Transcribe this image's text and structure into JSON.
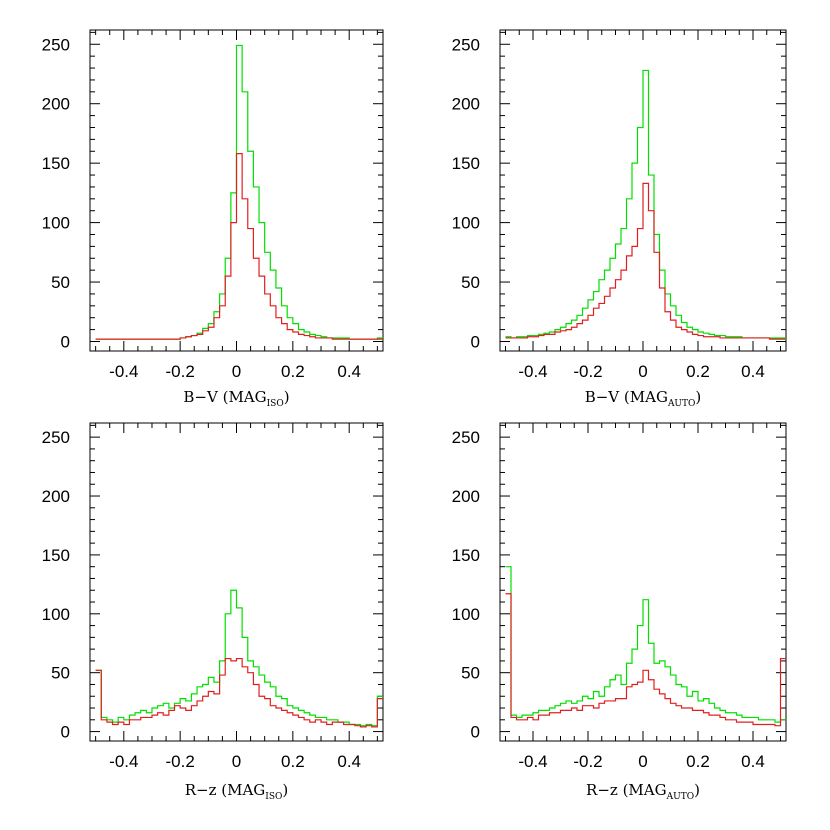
{
  "figure": {
    "colors": {
      "green": "#00e000",
      "red": "#e02020",
      "axes": "#000000"
    }
  },
  "chart_data": [
    {
      "type": "histogram",
      "xlabel": {
        "main": "B−V (MAG",
        "sub": "ISO",
        "close": ")"
      },
      "xlim": [
        -0.52,
        0.52
      ],
      "ylim": [
        -8,
        262
      ],
      "xticks": [
        "-0.4",
        "-0.2",
        "0",
        "0.2",
        "0.4"
      ],
      "yticks": [
        "0",
        "50",
        "100",
        "150",
        "200",
        "250"
      ],
      "bin_edges": [
        -0.5,
        -0.48,
        -0.46,
        -0.44,
        -0.42,
        -0.4,
        -0.38,
        -0.36,
        -0.34,
        -0.32,
        -0.3,
        -0.28,
        -0.26,
        -0.24,
        -0.22,
        -0.2,
        -0.18,
        -0.16,
        -0.14,
        -0.12,
        -0.1,
        -0.08,
        -0.06,
        -0.04,
        -0.02,
        0,
        0.02,
        0.04,
        0.06,
        0.08,
        0.1,
        0.12,
        0.14,
        0.16,
        0.18,
        0.2,
        0.22,
        0.24,
        0.26,
        0.28,
        0.3,
        0.32,
        0.34,
        0.36,
        0.38,
        0.4,
        0.42,
        0.44,
        0.46,
        0.48,
        0.5,
        0.52
      ],
      "series": [
        {
          "color": "green",
          "counts": [
            2,
            2,
            2,
            2,
            2,
            2,
            2,
            2,
            2,
            2,
            2,
            2,
            2,
            2,
            2,
            3,
            4,
            5,
            7,
            11,
            15,
            25,
            40,
            70,
            125,
            249,
            210,
            160,
            130,
            100,
            75,
            60,
            45,
            30,
            20,
            15,
            10,
            8,
            6,
            5,
            4,
            3,
            3,
            3,
            3,
            2,
            2,
            2,
            2,
            2,
            3
          ]
        },
        {
          "color": "red",
          "counts": [
            2,
            2,
            2,
            2,
            2,
            2,
            2,
            2,
            2,
            2,
            2,
            2,
            2,
            2,
            2,
            3,
            4,
            5,
            6,
            9,
            12,
            20,
            30,
            55,
            100,
            158,
            120,
            95,
            70,
            55,
            40,
            30,
            20,
            15,
            10,
            8,
            6,
            5,
            4,
            3,
            3,
            3,
            2,
            2,
            2,
            2,
            2,
            2,
            2,
            2,
            2
          ]
        }
      ]
    },
    {
      "type": "histogram",
      "xlabel": {
        "main": "B−V (MAG",
        "sub": "AUTO",
        "close": ")"
      },
      "xlim": [
        -0.52,
        0.52
      ],
      "ylim": [
        -8,
        262
      ],
      "xticks": [
        "-0.4",
        "-0.2",
        "0",
        "0.2",
        "0.4"
      ],
      "yticks": [
        "0",
        "50",
        "100",
        "150",
        "200",
        "250"
      ],
      "bin_edges": [
        -0.5,
        -0.48,
        -0.46,
        -0.44,
        -0.42,
        -0.4,
        -0.38,
        -0.36,
        -0.34,
        -0.32,
        -0.3,
        -0.28,
        -0.26,
        -0.24,
        -0.22,
        -0.2,
        -0.18,
        -0.16,
        -0.14,
        -0.12,
        -0.1,
        -0.08,
        -0.06,
        -0.04,
        -0.02,
        0,
        0.02,
        0.04,
        0.06,
        0.08,
        0.1,
        0.12,
        0.14,
        0.16,
        0.18,
        0.2,
        0.22,
        0.24,
        0.26,
        0.28,
        0.3,
        0.32,
        0.34,
        0.36,
        0.38,
        0.4,
        0.42,
        0.44,
        0.46,
        0.48,
        0.5,
        0.52
      ],
      "series": [
        {
          "color": "green",
          "counts": [
            4,
            3,
            4,
            4,
            5,
            5,
            6,
            7,
            8,
            10,
            12,
            15,
            18,
            22,
            28,
            35,
            42,
            52,
            60,
            70,
            82,
            95,
            120,
            150,
            180,
            228,
            140,
            90,
            60,
            40,
            30,
            22,
            16,
            12,
            10,
            8,
            7,
            6,
            5,
            5,
            4,
            4,
            4,
            3,
            3,
            3,
            3,
            3,
            3,
            3,
            3
          ]
        },
        {
          "color": "red",
          "counts": [
            3,
            3,
            3,
            3,
            4,
            4,
            5,
            6,
            6,
            8,
            9,
            10,
            12,
            15,
            18,
            22,
            28,
            32,
            38,
            45,
            52,
            60,
            72,
            80,
            95,
            133,
            110,
            75,
            45,
            25,
            18,
            12,
            10,
            8,
            6,
            5,
            4,
            4,
            4,
            3,
            3,
            3,
            3,
            3,
            3,
            3,
            3,
            3,
            2,
            2,
            2
          ]
        }
      ]
    },
    {
      "type": "histogram",
      "xlabel": {
        "main": "R−z (MAG",
        "sub": "ISO",
        "close": ")"
      },
      "xlim": [
        -0.52,
        0.52
      ],
      "ylim": [
        -8,
        262
      ],
      "xticks": [
        "-0.4",
        "-0.2",
        "0",
        "0.2",
        "0.4"
      ],
      "yticks": [
        "0",
        "50",
        "100",
        "150",
        "200",
        "250"
      ],
      "bin_edges": [
        -0.5,
        -0.48,
        -0.46,
        -0.44,
        -0.42,
        -0.4,
        -0.38,
        -0.36,
        -0.34,
        -0.32,
        -0.3,
        -0.28,
        -0.26,
        -0.24,
        -0.22,
        -0.2,
        -0.18,
        -0.16,
        -0.14,
        -0.12,
        -0.1,
        -0.08,
        -0.06,
        -0.04,
        -0.02,
        0,
        0.02,
        0.04,
        0.06,
        0.08,
        0.1,
        0.12,
        0.14,
        0.16,
        0.18,
        0.2,
        0.22,
        0.24,
        0.26,
        0.28,
        0.3,
        0.32,
        0.34,
        0.36,
        0.38,
        0.4,
        0.42,
        0.44,
        0.46,
        0.48,
        0.5,
        0.52
      ],
      "series": [
        {
          "color": "green",
          "counts": [
            52,
            12,
            10,
            8,
            12,
            10,
            14,
            16,
            18,
            16,
            20,
            22,
            24,
            20,
            24,
            28,
            26,
            32,
            38,
            40,
            46,
            42,
            60,
            100,
            120,
            105,
            80,
            60,
            55,
            48,
            42,
            38,
            30,
            28,
            22,
            20,
            18,
            16,
            14,
            12,
            12,
            10,
            10,
            8,
            8,
            6,
            6,
            5,
            6,
            5,
            30
          ]
        },
        {
          "color": "red",
          "counts": [
            52,
            10,
            8,
            6,
            8,
            6,
            10,
            10,
            12,
            12,
            14,
            16,
            14,
            18,
            22,
            20,
            18,
            22,
            26,
            30,
            34,
            32,
            48,
            62,
            60,
            62,
            55,
            50,
            40,
            30,
            28,
            22,
            20,
            18,
            16,
            14,
            12,
            10,
            8,
            10,
            8,
            6,
            8,
            8,
            6,
            6,
            5,
            4,
            5,
            4,
            28
          ]
        }
      ]
    },
    {
      "type": "histogram",
      "xlabel": {
        "main": "R−z (MAG",
        "sub": "AUTO",
        "close": ")"
      },
      "xlim": [
        -0.52,
        0.52
      ],
      "ylim": [
        -8,
        262
      ],
      "xticks": [
        "-0.4",
        "-0.2",
        "0",
        "0.2",
        "0.4"
      ],
      "yticks": [
        "0",
        "50",
        "100",
        "150",
        "200",
        "250"
      ],
      "bin_edges": [
        -0.5,
        -0.48,
        -0.46,
        -0.44,
        -0.42,
        -0.4,
        -0.38,
        -0.36,
        -0.34,
        -0.32,
        -0.3,
        -0.28,
        -0.26,
        -0.24,
        -0.22,
        -0.2,
        -0.18,
        -0.16,
        -0.14,
        -0.12,
        -0.1,
        -0.08,
        -0.06,
        -0.04,
        -0.02,
        0,
        0.02,
        0.04,
        0.06,
        0.08,
        0.1,
        0.12,
        0.14,
        0.16,
        0.18,
        0.2,
        0.22,
        0.24,
        0.26,
        0.28,
        0.3,
        0.32,
        0.34,
        0.36,
        0.38,
        0.4,
        0.42,
        0.44,
        0.46,
        0.48,
        0.5,
        0.52
      ],
      "series": [
        {
          "color": "green",
          "counts": [
            140,
            14,
            12,
            14,
            14,
            16,
            18,
            18,
            20,
            22,
            24,
            26,
            24,
            26,
            30,
            28,
            34,
            30,
            38,
            44,
            48,
            40,
            58,
            70,
            90,
            112,
            75,
            58,
            60,
            55,
            48,
            40,
            38,
            30,
            34,
            26,
            28,
            24,
            20,
            18,
            16,
            16,
            14,
            12,
            12,
            12,
            10,
            10,
            10,
            8,
            10
          ]
        },
        {
          "color": "red",
          "counts": [
            117,
            12,
            10,
            10,
            12,
            10,
            14,
            14,
            16,
            16,
            18,
            18,
            20,
            18,
            22,
            22,
            20,
            24,
            26,
            26,
            28,
            28,
            38,
            40,
            42,
            52,
            44,
            36,
            32,
            28,
            24,
            22,
            20,
            20,
            18,
            18,
            16,
            14,
            14,
            12,
            10,
            10,
            8,
            8,
            8,
            6,
            6,
            6,
            6,
            5,
            62
          ]
        }
      ]
    }
  ]
}
